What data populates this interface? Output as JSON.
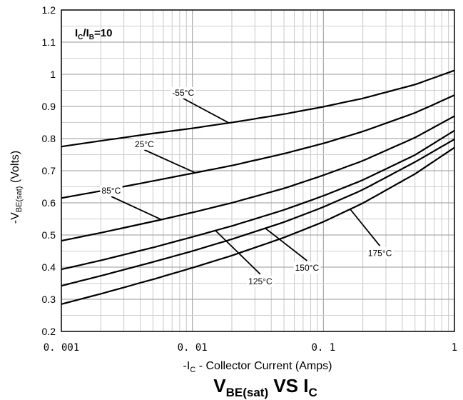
{
  "chart_data": {
    "type": "line",
    "x_scale": "log",
    "xlim": [
      0.001,
      1
    ],
    "ylim": [
      0.2,
      1.2
    ],
    "grid": true,
    "legend": "inline labels on curves",
    "x_tick_labels": [
      "0. 001",
      "0. 01",
      "0. 1",
      "1"
    ],
    "y_tick_labels": [
      "0.2",
      "0.3",
      "0.4",
      "0.5",
      "0.6",
      "0.7",
      "0.8",
      "0.9",
      "1",
      "1.1",
      "1.2"
    ],
    "title": {
      "main": "V",
      "sub": "BE(sat)",
      "tail": " VS I",
      "tail_sub": "C"
    },
    "xlabel": {
      "pre": "-I",
      "sub": "C",
      "post": " - Collector Current (Amps)"
    },
    "ylabel": {
      "pre": "-V",
      "sub": "BE(sat)",
      "post": " (Volts)"
    },
    "condition": {
      "p1": "I",
      "s1": "C",
      "mid": "/I",
      "s2": "B",
      "post": "=10"
    },
    "x": [
      0.001,
      0.002,
      0.005,
      0.01,
      0.02,
      0.05,
      0.1,
      0.2,
      0.5,
      1
    ],
    "series": [
      {
        "name": "-55°C",
        "values": [
          0.775,
          0.793,
          0.816,
          0.832,
          0.85,
          0.876,
          0.899,
          0.925,
          0.968,
          1.012
        ]
      },
      {
        "name": "25°C",
        "values": [
          0.615,
          0.637,
          0.668,
          0.692,
          0.716,
          0.753,
          0.785,
          0.822,
          0.88,
          0.935
        ]
      },
      {
        "name": "85°C",
        "values": [
          0.482,
          0.507,
          0.542,
          0.57,
          0.6,
          0.645,
          0.686,
          0.731,
          0.803,
          0.87
        ]
      },
      {
        "name": "125°C",
        "values": [
          0.393,
          0.421,
          0.461,
          0.494,
          0.528,
          0.578,
          0.622,
          0.671,
          0.749,
          0.825
        ]
      },
      {
        "name": "150°C",
        "values": [
          0.342,
          0.373,
          0.416,
          0.45,
          0.487,
          0.54,
          0.587,
          0.641,
          0.727,
          0.798
        ]
      },
      {
        "name": "175°C",
        "values": [
          0.285,
          0.317,
          0.362,
          0.398,
          0.436,
          0.492,
          0.541,
          0.599,
          0.69,
          0.772
        ]
      }
    ],
    "annotations": [
      {
        "text": "-55°C",
        "series": 0,
        "at_x": 0.019,
        "label_at": [
          0.0085,
          0.925
        ]
      },
      {
        "text": "25°C",
        "series": 1,
        "at_x": 0.0105,
        "label_at": [
          0.0043,
          0.765
        ]
      },
      {
        "text": "85°C",
        "series": 2,
        "at_x": 0.0058,
        "label_at": [
          0.0024,
          0.62
        ]
      },
      {
        "text": "125°C",
        "series": 3,
        "at_x": 0.015,
        "label_at": [
          0.033,
          0.378
        ]
      },
      {
        "text": "150°C",
        "series": 4,
        "at_x": 0.036,
        "label_at": [
          0.075,
          0.42
        ]
      },
      {
        "text": "175°C",
        "series": 5,
        "at_x": 0.16,
        "label_at": [
          0.27,
          0.466
        ]
      }
    ]
  }
}
